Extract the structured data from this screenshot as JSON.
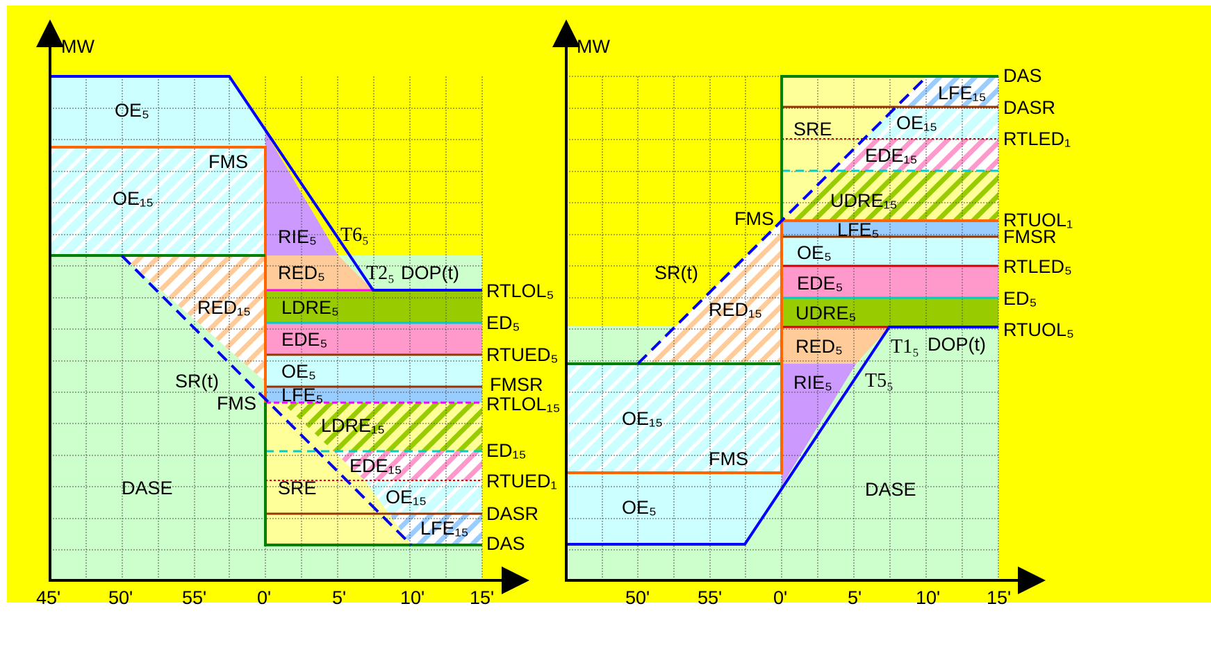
{
  "colors": {
    "background": "#ffff00",
    "dase": "#ccffcc",
    "oe": "#ccffff",
    "red": "#ffcc99",
    "rie": "#cc99ff",
    "ldre": "#99cc00",
    "ede": "#ff99cc",
    "lfe": "#99ccff",
    "sre": "#ffff99",
    "blue_line": "#0000ff",
    "orange_line": "#ff6600",
    "green_line": "#008000",
    "dark_red_line": "#993300"
  },
  "left_panel": {
    "y_axis_label": "MW",
    "x_ticks": [
      "45'",
      "50'",
      "55'",
      "0'",
      "5'",
      "10'",
      "15'"
    ],
    "regions": {
      "oe5_top": "OE₅",
      "fms_top": "FMS",
      "oe15": "OE₁₅",
      "rie5": "RIE₅",
      "t6": "T6₅",
      "red5": "RED₅",
      "t2": "T2₅",
      "dop": "DOP(t)",
      "red15": "RED₁₅",
      "ldre5": "LDRE₅",
      "ede5": "EDE₅",
      "oe5_mid": "OE₅",
      "lfe5": "LFE₅",
      "sr": "SR(t)",
      "fms_mid": "FMS",
      "ldre15": "LDRE₁₅",
      "ede15": "EDE₁₅",
      "dase": "DASE",
      "sre": "SRE",
      "oe15_low": "OE₁₅",
      "lfe15": "LFE₁₅"
    },
    "right_labels": [
      "RTLOL₅",
      "ED₅",
      "RTUED₅",
      "FMSR",
      "RTLOL₁₅",
      "ED₁₅",
      "RTUED₁",
      "DASR",
      "DAS"
    ]
  },
  "right_panel": {
    "y_axis_label": "MW",
    "x_ticks": [
      "50'",
      "55'",
      "0'",
      "5'",
      "10'",
      "15'"
    ],
    "regions": {
      "lfe15": "LFE₁₅",
      "sre": "SRE",
      "oe15_top": "OE₁₅",
      "ede15": "EDE₁₅",
      "udre15": "UDRE₁₅",
      "fms_top": "FMS",
      "lfe5": "LFE₅",
      "oe5_mid": "OE₅",
      "sr": "SR(t)",
      "red15": "RED₁₅",
      "ede5": "EDE₅",
      "udre5": "UDRE₅",
      "red5": "RED₅",
      "t1": "T1₅",
      "dop": "DOP(t)",
      "rie5": "RIE₅",
      "t5": "T5₅",
      "oe15_low": "OE₁₅",
      "fms_low": "FMS",
      "dase": "DASE",
      "oe5_low": "OE₅"
    },
    "right_labels": [
      "DAS",
      "DASR",
      "RTLED₁",
      "RTUOL₁",
      "FMSR",
      "RTLED₅",
      "ED₅",
      "RTUOL₅"
    ]
  }
}
